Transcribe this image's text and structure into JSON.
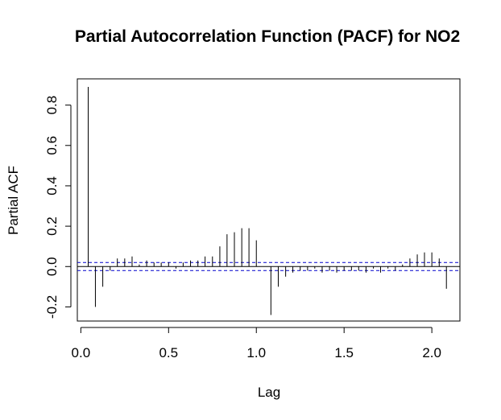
{
  "chart_data": {
    "type": "bar",
    "title": "Partial Autocorrelation Function (PACF) for NO2",
    "xlabel": "Lag",
    "ylabel": "Partial ACF",
    "xlim": [
      -0.02,
      2.16
    ],
    "ylim": [
      -0.27,
      0.93
    ],
    "x_ticks": [
      0.0,
      0.5,
      1.0,
      1.5,
      2.0
    ],
    "x_tick_labels": [
      "0.0",
      "0.5",
      "1.0",
      "1.5",
      "2.0"
    ],
    "y_ticks": [
      -0.2,
      0.0,
      0.2,
      0.4,
      0.6,
      0.8
    ],
    "y_tick_labels": [
      "-0.2",
      "0.0",
      "0.2",
      "0.4",
      "0.6",
      "0.8"
    ],
    "confidence_bounds": [
      0.02,
      -0.02
    ],
    "colors": {
      "bars": "#000000",
      "confidence": "#0000cc",
      "zero_line": "#000000"
    },
    "lags": [
      0.042,
      0.083,
      0.125,
      0.167,
      0.208,
      0.25,
      0.292,
      0.333,
      0.375,
      0.417,
      0.458,
      0.5,
      0.542,
      0.583,
      0.625,
      0.667,
      0.708,
      0.75,
      0.792,
      0.833,
      0.875,
      0.917,
      0.958,
      1.0,
      1.042,
      1.083,
      1.125,
      1.167,
      1.208,
      1.25,
      1.292,
      1.333,
      1.375,
      1.417,
      1.458,
      1.5,
      1.542,
      1.583,
      1.625,
      1.667,
      1.708,
      1.75,
      1.792,
      1.833,
      1.875,
      1.917,
      1.958,
      2.0,
      2.042,
      2.083
    ],
    "values": [
      0.89,
      -0.2,
      -0.1,
      -0.02,
      0.04,
      0.04,
      0.05,
      0.01,
      0.03,
      0.02,
      0.02,
      0.02,
      -0.01,
      0.02,
      0.03,
      0.03,
      0.05,
      0.05,
      0.1,
      0.16,
      0.17,
      0.19,
      0.19,
      0.13,
      0.0,
      -0.24,
      -0.1,
      -0.05,
      -0.03,
      -0.02,
      -0.02,
      -0.01,
      -0.03,
      -0.02,
      -0.03,
      -0.02,
      -0.02,
      -0.02,
      -0.03,
      -0.01,
      -0.03,
      -0.01,
      -0.02,
      0.01,
      0.04,
      0.06,
      0.07,
      0.07,
      0.04,
      -0.11
    ]
  }
}
